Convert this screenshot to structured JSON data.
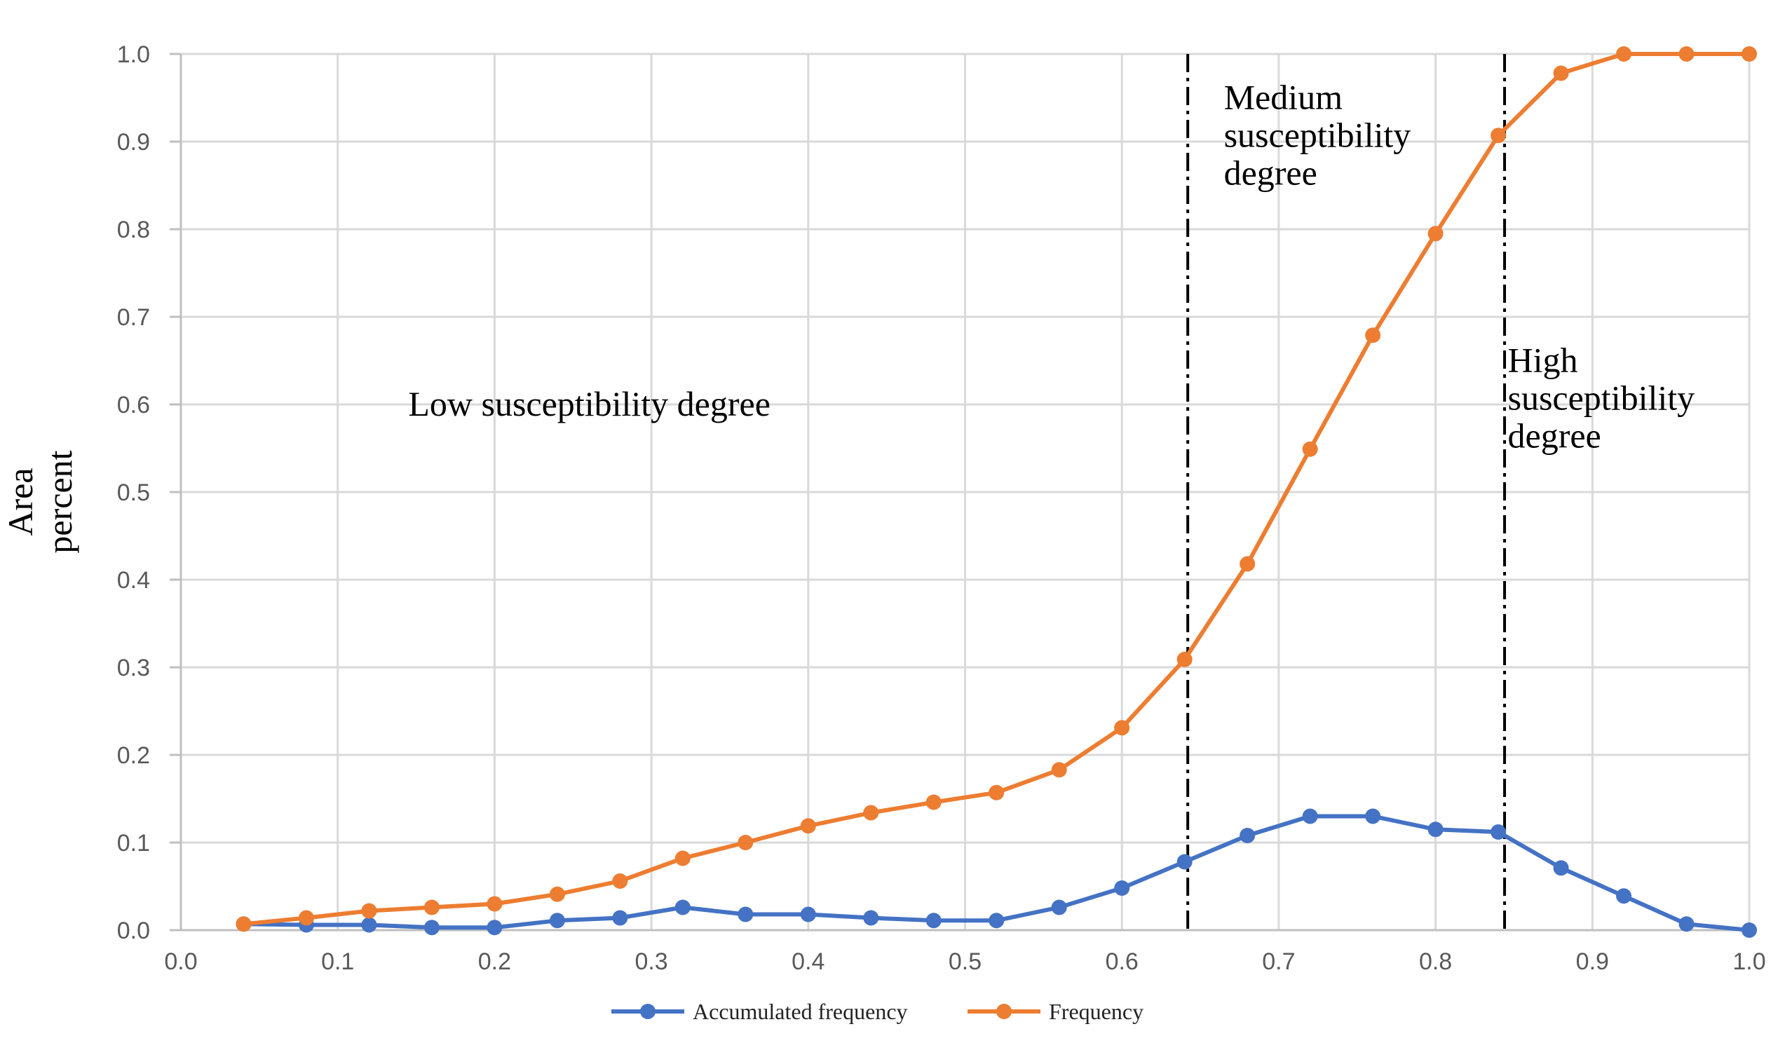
{
  "chart_data": {
    "type": "line",
    "title": "",
    "xlabel": "",
    "ylabel": "Area percent",
    "ylabel_lines": [
      "Area",
      "percent"
    ],
    "xlim": [
      0.0,
      1.0
    ],
    "ylim": [
      0.0,
      1.0
    ],
    "grid": true,
    "x_ticks": [
      "0.0",
      "0.1",
      "0.2",
      "0.3",
      "0.4",
      "0.5",
      "0.6",
      "0.7",
      "0.8",
      "0.9",
      "1.0"
    ],
    "y_ticks": [
      "0.0",
      "0.1",
      "0.2",
      "0.3",
      "0.4",
      "0.5",
      "0.6",
      "0.7",
      "0.8",
      "0.9",
      "1.0"
    ],
    "x": [
      0.04,
      0.08,
      0.12,
      0.16,
      0.2,
      0.24,
      0.28,
      0.32,
      0.36,
      0.4,
      0.44,
      0.48,
      0.52,
      0.56,
      0.6,
      0.64,
      0.68,
      0.72,
      0.76,
      0.8,
      0.84,
      0.88,
      0.92,
      0.96,
      1.0
    ],
    "series": [
      {
        "name": "Accumulated frequency",
        "color": "#4472c4",
        "values": [
          0.007,
          0.006,
          0.006,
          0.003,
          0.003,
          0.011,
          0.014,
          0.026,
          0.018,
          0.018,
          0.014,
          0.011,
          0.011,
          0.026,
          0.048,
          0.078,
          0.108,
          0.13,
          0.13,
          0.115,
          0.112,
          0.071,
          0.039,
          0.007,
          0.0
        ]
      },
      {
        "name": "Frequency",
        "color": "#ed7d31",
        "values": [
          0.007,
          0.014,
          0.022,
          0.026,
          0.03,
          0.041,
          0.056,
          0.082,
          0.1,
          0.119,
          0.134,
          0.146,
          0.157,
          0.183,
          0.231,
          0.309,
          0.418,
          0.549,
          0.679,
          0.795,
          0.907,
          0.978,
          1.0,
          1.0,
          1.0
        ]
      }
    ],
    "dividers": [
      0.642,
      0.844
    ],
    "annotations": [
      {
        "lines": [
          "Low susceptibility degree"
        ],
        "x": 0.145,
        "y": 0.6
      },
      {
        "lines": [
          "Medium",
          "susceptibility",
          "degree"
        ],
        "x": 0.665,
        "y": 0.95
      },
      {
        "lines": [
          "High",
          "susceptibility",
          "degree"
        ],
        "x": 0.846,
        "y": 0.65
      }
    ],
    "legend_position": "bottom-center"
  }
}
